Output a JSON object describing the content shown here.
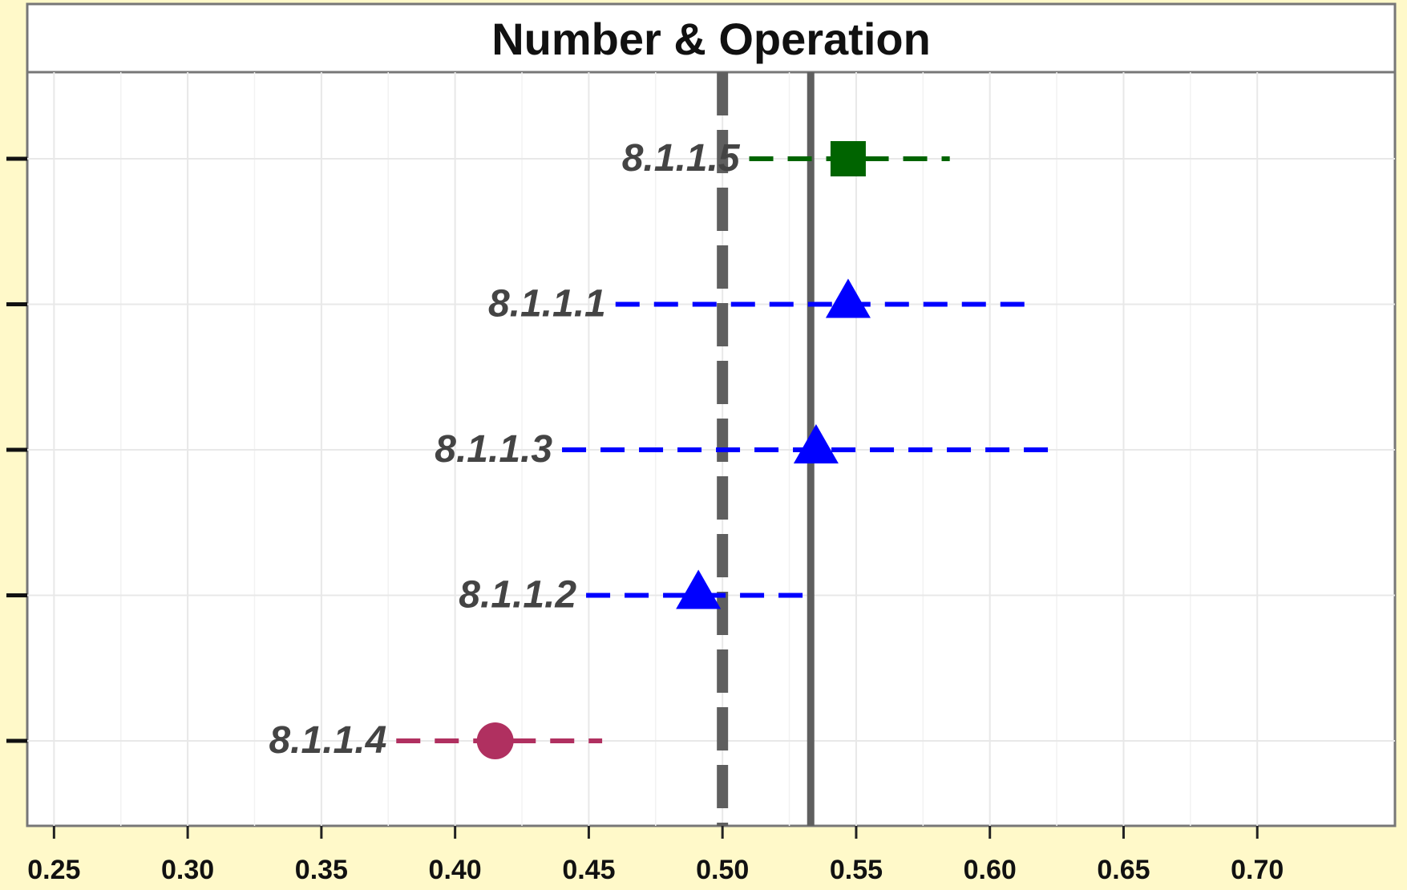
{
  "chart_data": {
    "type": "scatter",
    "title": "Number & Operation",
    "xlabel": "",
    "ylabel": "",
    "xlim": [
      0.24,
      0.7515
    ],
    "x_ticks": [
      0.25,
      0.3,
      0.35,
      0.4,
      0.45,
      0.5,
      0.55,
      0.6,
      0.65,
      0.7
    ],
    "x_tick_labels": [
      "0.25",
      "0.30",
      "0.35",
      "0.40",
      "0.45",
      "0.50",
      "0.55",
      "0.60",
      "0.65",
      "0.70"
    ],
    "grid": true,
    "reference_lines": [
      {
        "style": "dashed",
        "x": 0.5,
        "color": "#5f5f5f"
      },
      {
        "style": "solid",
        "x": 0.533,
        "color": "#5f5f5f"
      }
    ],
    "points": [
      {
        "label": "8.1.1.5",
        "x": 0.547,
        "lower": 0.51,
        "upper": 0.585,
        "shape": "square",
        "color": "#006400"
      },
      {
        "label": "8.1.1.1",
        "x": 0.547,
        "lower": 0.46,
        "upper": 0.617,
        "shape": "triangle",
        "color": "#0000ff"
      },
      {
        "label": "8.1.1.3",
        "x": 0.535,
        "lower": 0.44,
        "upper": 0.623,
        "shape": "triangle",
        "color": "#0000ff"
      },
      {
        "label": "8.1.1.2",
        "x": 0.491,
        "lower": 0.449,
        "upper": 0.533,
        "shape": "triangle",
        "color": "#0000ff"
      },
      {
        "label": "8.1.1.4",
        "x": 0.415,
        "lower": 0.378,
        "upper": 0.455,
        "shape": "circle",
        "color": "#b03060"
      }
    ]
  }
}
